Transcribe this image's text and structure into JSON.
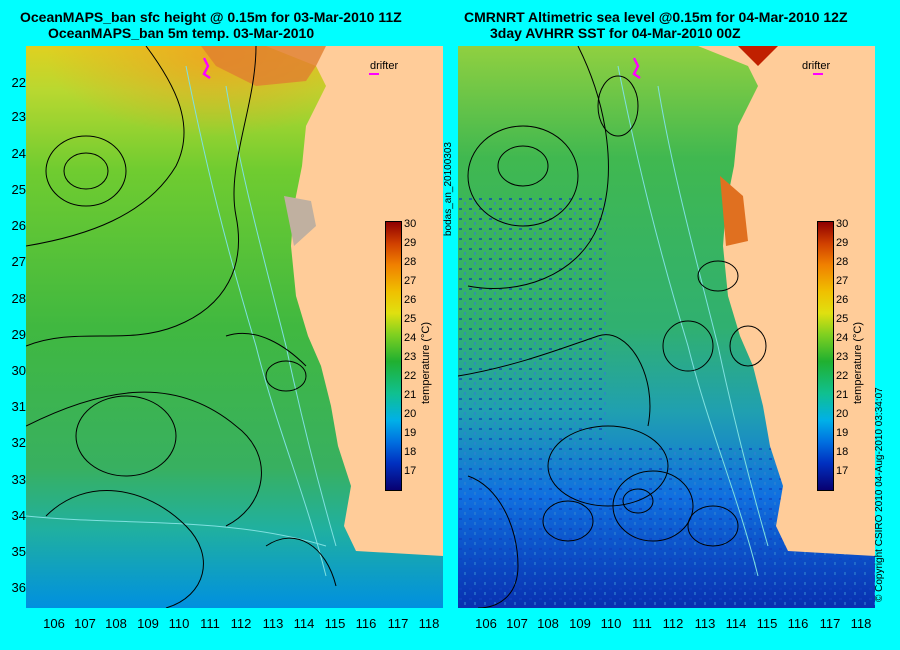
{
  "left_panel": {
    "title_line1": "OceanMAPS_ban sfc height @ 0.15m for 03-Mar-2010 11Z",
    "title_line2": "OceanMAPS_ban 5m temp. 03-Mar-2010"
  },
  "right_panel": {
    "title_line1": "CMRNRT Altimetric sea level  @0.15m  for 04-Mar-2010 12Z",
    "title_line2": "3day AVHRR SST for 04-Mar-2010 00Z"
  },
  "latitude_labels": [
    "22",
    "23",
    "24",
    "25",
    "26",
    "27",
    "28",
    "29",
    "30",
    "31",
    "32",
    "33",
    "34",
    "35",
    "36"
  ],
  "longitude_labels": [
    "106",
    "107",
    "108",
    "109",
    "110",
    "111",
    "112",
    "113",
    "114",
    "115",
    "116",
    "117",
    "118"
  ],
  "colorbar": {
    "ticks": [
      "30",
      "29",
      "28",
      "27",
      "26",
      "25",
      "24",
      "23",
      "22",
      "21",
      "20",
      "19",
      "18",
      "17"
    ],
    "unit_label": "temperature (°C)",
    "range": [
      16,
      30.5
    ]
  },
  "drifter_label": "drifter",
  "side_stamp": "bodas_an_20100303",
  "copyright": "© Copyright CSIRO 2010    04-Aug-2010 03:34:07",
  "colors": {
    "background": "#00ffff",
    "land": "#ffcc99",
    "drifter": "#ff00ff",
    "isobath": "#7fe0e0"
  }
}
